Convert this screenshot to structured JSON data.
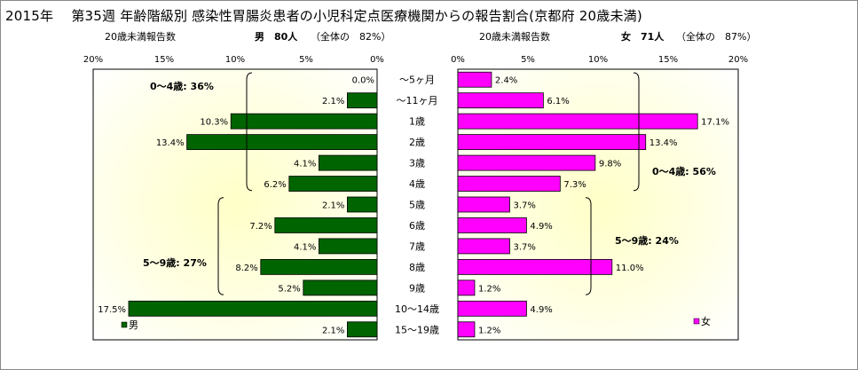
{
  "title": "2015年　 第35週 年齢階級別 感染性胃腸炎患者の小児科定点医療機関からの報告割合(京都府 20歳未満)",
  "chart_data": {
    "type": "bar",
    "categories": [
      "～5ヶ月",
      "～11ヶ月",
      "1歳",
      "2歳",
      "3歳",
      "4歳",
      "5歳",
      "6歳",
      "7歳",
      "8歳",
      "9歳",
      "10～14歳",
      "15～19歳"
    ],
    "x_ticks": [
      "0%",
      "5%",
      "10%",
      "15%",
      "20%"
    ],
    "xlim": [
      0,
      20
    ],
    "series": [
      {
        "name": "男",
        "color": "#006400",
        "values": [
          0.0,
          2.1,
          10.3,
          13.4,
          4.1,
          6.2,
          2.1,
          7.2,
          4.1,
          8.2,
          5.2,
          17.5,
          2.1
        ],
        "labels": [
          "0.0%",
          "2.1%",
          "10.3%",
          "13.4%",
          "4.1%",
          "6.2%",
          "2.1%",
          "7.2%",
          "4.1%",
          "8.2%",
          "5.2%",
          "17.5%",
          "2.1%"
        ],
        "subtitle": {
          "left": "20歳未満報告数",
          "main": "男　80人",
          "paren": "（全体の　82%）"
        },
        "groups": [
          {
            "label": "0～4歳: 36%",
            "from": 0,
            "to": 5
          },
          {
            "label": "5～9歳: 27%",
            "from": 6,
            "to": 10
          }
        ]
      },
      {
        "name": "女",
        "color": "#FF00FF",
        "values": [
          2.4,
          6.1,
          17.1,
          13.4,
          9.8,
          7.3,
          3.7,
          4.9,
          3.7,
          11.0,
          1.2,
          4.9,
          1.2
        ],
        "labels": [
          "2.4%",
          "6.1%",
          "17.1%",
          "13.4%",
          "9.8%",
          "7.3%",
          "3.7%",
          "4.9%",
          "3.7%",
          "11.0%",
          "1.2%",
          "4.9%",
          "1.2%"
        ],
        "subtitle": {
          "left": "20歳未満報告数",
          "main": "女　71人",
          "paren": "（全体の　87%）"
        },
        "groups": [
          {
            "label": "0～4歳: 56%",
            "from": 0,
            "to": 5
          },
          {
            "label": "5～9歳: 24%",
            "from": 6,
            "to": 10
          }
        ]
      }
    ]
  }
}
